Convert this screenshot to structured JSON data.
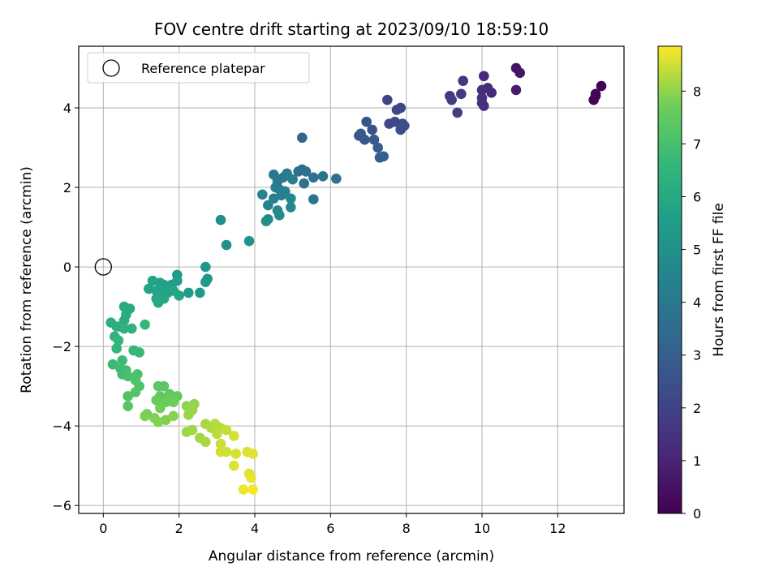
{
  "chart_data": {
    "type": "scatter",
    "title": "FOV centre drift starting at 2023/09/10 18:59:10",
    "xlabel": "Angular distance from reference (arcmin)",
    "ylabel": "Rotation from reference (arcmin)",
    "xlim": [
      -0.65,
      13.75
    ],
    "ylim": [
      -6.2,
      5.55
    ],
    "xticks": [
      0,
      2,
      4,
      6,
      8,
      10,
      12
    ],
    "yticks": [
      -6,
      -4,
      -2,
      0,
      2,
      4
    ],
    "grid": true,
    "colormap": "viridis",
    "colorbar": {
      "label": "Hours from first FF file",
      "min": 0,
      "max": 8.85,
      "ticks": [
        0,
        1,
        2,
        3,
        4,
        5,
        6,
        7,
        8
      ]
    },
    "legend": {
      "position": "top-left",
      "entries": [
        {
          "label": "Reference platepar",
          "marker": "open-circle"
        }
      ]
    },
    "reference_point": {
      "x": 0,
      "y": 0
    },
    "points": [
      {
        "x": 13.15,
        "y": 4.55,
        "c": 0.05
      },
      {
        "x": 13.0,
        "y": 4.35,
        "c": 0.1
      },
      {
        "x": 12.95,
        "y": 4.2,
        "c": 0.12
      },
      {
        "x": 13.0,
        "y": 4.3,
        "c": 0.08
      },
      {
        "x": 10.9,
        "y": 5.0,
        "c": 0.55
      },
      {
        "x": 11.0,
        "y": 4.88,
        "c": 0.6
      },
      {
        "x": 10.9,
        "y": 4.45,
        "c": 0.7
      },
      {
        "x": 10.05,
        "y": 4.8,
        "c": 1.1
      },
      {
        "x": 10.15,
        "y": 4.5,
        "c": 1.15
      },
      {
        "x": 10.25,
        "y": 4.38,
        "c": 1.2
      },
      {
        "x": 10.0,
        "y": 4.45,
        "c": 1.3
      },
      {
        "x": 10.0,
        "y": 4.25,
        "c": 1.35
      },
      {
        "x": 10.05,
        "y": 4.05,
        "c": 1.4
      },
      {
        "x": 10.0,
        "y": 4.12,
        "c": 1.45
      },
      {
        "x": 9.5,
        "y": 4.68,
        "c": 1.6
      },
      {
        "x": 9.45,
        "y": 4.35,
        "c": 1.7
      },
      {
        "x": 9.15,
        "y": 4.3,
        "c": 1.75
      },
      {
        "x": 9.2,
        "y": 4.2,
        "c": 1.8
      },
      {
        "x": 9.35,
        "y": 3.88,
        "c": 1.85
      },
      {
        "x": 7.5,
        "y": 4.2,
        "c": 2.0
      },
      {
        "x": 7.85,
        "y": 4.0,
        "c": 2.1
      },
      {
        "x": 7.75,
        "y": 3.95,
        "c": 2.15
      },
      {
        "x": 7.55,
        "y": 3.6,
        "c": 2.2
      },
      {
        "x": 7.7,
        "y": 3.65,
        "c": 2.25
      },
      {
        "x": 7.9,
        "y": 3.6,
        "c": 2.3
      },
      {
        "x": 7.85,
        "y": 3.45,
        "c": 2.35
      },
      {
        "x": 7.95,
        "y": 3.55,
        "c": 2.4
      },
      {
        "x": 6.95,
        "y": 3.65,
        "c": 2.55
      },
      {
        "x": 7.1,
        "y": 3.45,
        "c": 2.6
      },
      {
        "x": 6.75,
        "y": 3.3,
        "c": 2.7
      },
      {
        "x": 6.8,
        "y": 3.35,
        "c": 2.75
      },
      {
        "x": 6.9,
        "y": 3.2,
        "c": 2.8
      },
      {
        "x": 7.15,
        "y": 3.2,
        "c": 2.85
      },
      {
        "x": 7.25,
        "y": 3.0,
        "c": 2.9
      },
      {
        "x": 7.3,
        "y": 2.75,
        "c": 3.0
      },
      {
        "x": 7.4,
        "y": 2.78,
        "c": 3.05
      },
      {
        "x": 5.25,
        "y": 3.25,
        "c": 3.3
      },
      {
        "x": 5.25,
        "y": 2.45,
        "c": 3.6
      },
      {
        "x": 5.35,
        "y": 2.4,
        "c": 3.65
      },
      {
        "x": 5.15,
        "y": 2.4,
        "c": 3.7
      },
      {
        "x": 5.55,
        "y": 2.25,
        "c": 3.75
      },
      {
        "x": 5.8,
        "y": 2.28,
        "c": 3.8
      },
      {
        "x": 6.15,
        "y": 2.22,
        "c": 3.75
      },
      {
        "x": 5.3,
        "y": 2.1,
        "c": 3.85
      },
      {
        "x": 5.55,
        "y": 1.7,
        "c": 3.9
      },
      {
        "x": 4.5,
        "y": 2.32,
        "c": 4.0
      },
      {
        "x": 4.6,
        "y": 2.15,
        "c": 4.05
      },
      {
        "x": 4.75,
        "y": 2.25,
        "c": 4.1
      },
      {
        "x": 4.85,
        "y": 2.35,
        "c": 4.15
      },
      {
        "x": 5.0,
        "y": 2.2,
        "c": 4.2
      },
      {
        "x": 4.55,
        "y": 2.0,
        "c": 4.25
      },
      {
        "x": 4.65,
        "y": 1.95,
        "c": 4.3
      },
      {
        "x": 4.8,
        "y": 1.9,
        "c": 4.35
      },
      {
        "x": 4.7,
        "y": 1.8,
        "c": 4.4
      },
      {
        "x": 4.5,
        "y": 1.72,
        "c": 4.45
      },
      {
        "x": 4.2,
        "y": 1.82,
        "c": 4.5
      },
      {
        "x": 4.35,
        "y": 1.55,
        "c": 4.55
      },
      {
        "x": 4.95,
        "y": 1.72,
        "c": 4.6
      },
      {
        "x": 4.95,
        "y": 1.5,
        "c": 4.65
      },
      {
        "x": 4.6,
        "y": 1.42,
        "c": 4.7
      },
      {
        "x": 4.65,
        "y": 1.3,
        "c": 4.75
      },
      {
        "x": 4.35,
        "y": 1.2,
        "c": 4.8
      },
      {
        "x": 4.3,
        "y": 1.15,
        "c": 4.85
      },
      {
        "x": 3.1,
        "y": 1.18,
        "c": 4.9
      },
      {
        "x": 3.25,
        "y": 0.55,
        "c": 5.0
      },
      {
        "x": 3.85,
        "y": 0.65,
        "c": 5.1
      },
      {
        "x": 2.7,
        "y": 0.0,
        "c": 5.2
      },
      {
        "x": 2.75,
        "y": -0.3,
        "c": 5.25
      },
      {
        "x": 2.7,
        "y": -0.38,
        "c": 5.3
      },
      {
        "x": 2.55,
        "y": -0.65,
        "c": 5.35
      },
      {
        "x": 2.25,
        "y": -0.65,
        "c": 5.45
      },
      {
        "x": 1.95,
        "y": -0.2,
        "c": 5.5
      },
      {
        "x": 1.95,
        "y": -0.35,
        "c": 5.55
      },
      {
        "x": 1.8,
        "y": -0.45,
        "c": 5.55
      },
      {
        "x": 1.6,
        "y": -0.45,
        "c": 5.6
      },
      {
        "x": 1.5,
        "y": -0.4,
        "c": 5.65
      },
      {
        "x": 1.3,
        "y": -0.35,
        "c": 5.7
      },
      {
        "x": 1.2,
        "y": -0.55,
        "c": 5.7
      },
      {
        "x": 1.4,
        "y": -0.6,
        "c": 5.75
      },
      {
        "x": 1.55,
        "y": -0.65,
        "c": 5.8
      },
      {
        "x": 1.7,
        "y": -0.65,
        "c": 5.8
      },
      {
        "x": 1.85,
        "y": -0.6,
        "c": 5.85
      },
      {
        "x": 2.0,
        "y": -0.72,
        "c": 5.85
      },
      {
        "x": 1.6,
        "y": -0.8,
        "c": 5.9
      },
      {
        "x": 1.4,
        "y": -0.8,
        "c": 5.9
      },
      {
        "x": 1.45,
        "y": -0.9,
        "c": 5.95
      },
      {
        "x": 0.55,
        "y": -1.0,
        "c": 6.0
      },
      {
        "x": 0.7,
        "y": -1.05,
        "c": 6.05
      },
      {
        "x": 0.6,
        "y": -1.2,
        "c": 6.1
      },
      {
        "x": 0.55,
        "y": -1.35,
        "c": 6.15
      },
      {
        "x": 0.45,
        "y": -1.5,
        "c": 6.2
      },
      {
        "x": 0.2,
        "y": -1.4,
        "c": 6.25
      },
      {
        "x": 0.35,
        "y": -1.5,
        "c": 6.3
      },
      {
        "x": 0.55,
        "y": -1.55,
        "c": 6.35
      },
      {
        "x": 0.75,
        "y": -1.55,
        "c": 6.4
      },
      {
        "x": 0.3,
        "y": -1.75,
        "c": 6.45
      },
      {
        "x": 0.4,
        "y": -1.85,
        "c": 6.5
      },
      {
        "x": 0.35,
        "y": -2.05,
        "c": 6.55
      },
      {
        "x": 1.1,
        "y": -1.45,
        "c": 6.6
      },
      {
        "x": 0.8,
        "y": -2.1,
        "c": 6.65
      },
      {
        "x": 0.95,
        "y": -2.15,
        "c": 6.7
      },
      {
        "x": 0.25,
        "y": -2.45,
        "c": 6.75
      },
      {
        "x": 0.5,
        "y": -2.35,
        "c": 6.8
      },
      {
        "x": 0.45,
        "y": -2.55,
        "c": 6.85
      },
      {
        "x": 0.5,
        "y": -2.7,
        "c": 6.9
      },
      {
        "x": 0.6,
        "y": -2.6,
        "c": 6.95
      },
      {
        "x": 0.65,
        "y": -2.75,
        "c": 7.0
      },
      {
        "x": 0.9,
        "y": -2.7,
        "c": 7.05
      },
      {
        "x": 0.85,
        "y": -2.85,
        "c": 7.1
      },
      {
        "x": 0.95,
        "y": -3.0,
        "c": 7.15
      },
      {
        "x": 0.65,
        "y": -3.25,
        "c": 7.2
      },
      {
        "x": 0.85,
        "y": -3.15,
        "c": 7.25
      },
      {
        "x": 0.65,
        "y": -3.5,
        "c": 7.3
      },
      {
        "x": 1.45,
        "y": -3.0,
        "c": 7.35
      },
      {
        "x": 1.6,
        "y": -3.0,
        "c": 7.4
      },
      {
        "x": 1.5,
        "y": -3.25,
        "c": 7.45
      },
      {
        "x": 1.75,
        "y": -3.2,
        "c": 7.5
      },
      {
        "x": 1.95,
        "y": -3.25,
        "c": 7.55
      },
      {
        "x": 1.4,
        "y": -3.35,
        "c": 7.6
      },
      {
        "x": 1.65,
        "y": -3.4,
        "c": 7.65
      },
      {
        "x": 1.85,
        "y": -3.4,
        "c": 7.7
      },
      {
        "x": 1.5,
        "y": -3.55,
        "c": 7.75
      },
      {
        "x": 1.15,
        "y": -3.7,
        "c": 7.8
      },
      {
        "x": 1.1,
        "y": -3.75,
        "c": 7.85
      },
      {
        "x": 1.35,
        "y": -3.8,
        "c": 7.85
      },
      {
        "x": 1.45,
        "y": -3.9,
        "c": 7.9
      },
      {
        "x": 1.65,
        "y": -3.85,
        "c": 7.9
      },
      {
        "x": 1.85,
        "y": -3.75,
        "c": 7.95
      },
      {
        "x": 2.2,
        "y": -3.5,
        "c": 8.0
      },
      {
        "x": 2.4,
        "y": -3.45,
        "c": 8.02
      },
      {
        "x": 2.35,
        "y": -3.6,
        "c": 8.05
      },
      {
        "x": 2.25,
        "y": -3.72,
        "c": 8.08
      },
      {
        "x": 2.2,
        "y": -4.15,
        "c": 8.1
      },
      {
        "x": 2.35,
        "y": -4.1,
        "c": 8.12
      },
      {
        "x": 2.55,
        "y": -4.3,
        "c": 8.15
      },
      {
        "x": 2.7,
        "y": -4.4,
        "c": 8.2
      },
      {
        "x": 2.7,
        "y": -3.95,
        "c": 8.2
      },
      {
        "x": 2.85,
        "y": -4.05,
        "c": 8.25
      },
      {
        "x": 2.95,
        "y": -3.95,
        "c": 8.28
      },
      {
        "x": 3.1,
        "y": -4.05,
        "c": 8.3
      },
      {
        "x": 3.0,
        "y": -4.2,
        "c": 8.35
      },
      {
        "x": 3.25,
        "y": -4.1,
        "c": 8.4
      },
      {
        "x": 3.1,
        "y": -4.45,
        "c": 8.45
      },
      {
        "x": 3.1,
        "y": -4.65,
        "c": 8.5
      },
      {
        "x": 3.25,
        "y": -4.65,
        "c": 8.5
      },
      {
        "x": 3.45,
        "y": -4.25,
        "c": 8.55
      },
      {
        "x": 3.5,
        "y": -4.7,
        "c": 8.55
      },
      {
        "x": 3.45,
        "y": -5.0,
        "c": 8.6
      },
      {
        "x": 3.8,
        "y": -4.65,
        "c": 8.6
      },
      {
        "x": 3.95,
        "y": -4.7,
        "c": 8.62
      },
      {
        "x": 3.85,
        "y": -5.2,
        "c": 8.65
      },
      {
        "x": 3.9,
        "y": -5.3,
        "c": 8.7
      },
      {
        "x": 3.7,
        "y": -5.6,
        "c": 8.75
      },
      {
        "x": 3.95,
        "y": -5.6,
        "c": 8.8
      }
    ]
  }
}
